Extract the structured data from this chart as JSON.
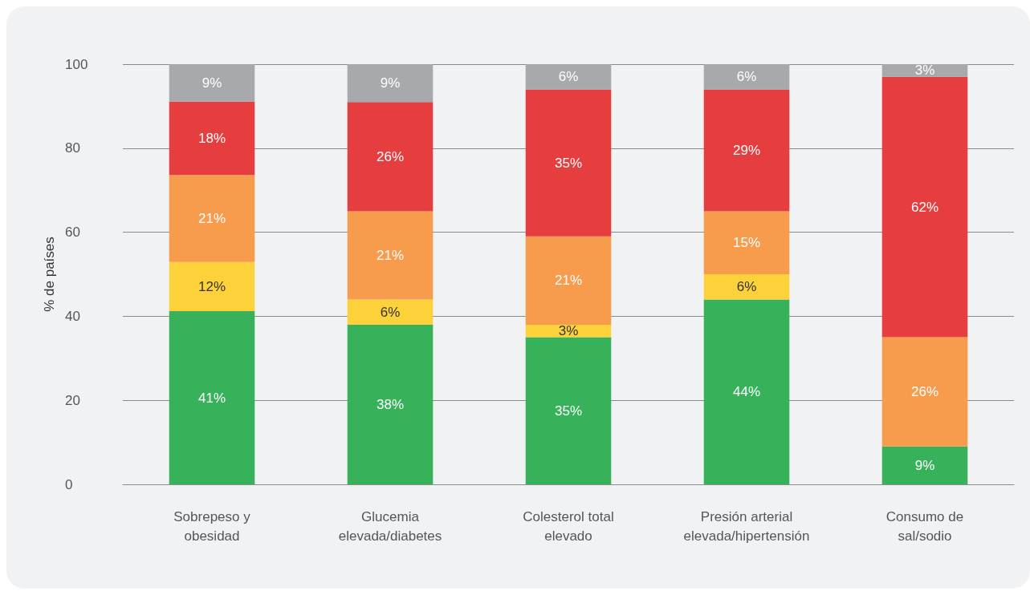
{
  "chart_data": {
    "type": "bar",
    "stacked": true,
    "ylabel": "% de países",
    "categories": [
      "Sobrepeso y\nobesidad",
      "Glucemia\nelevada/diabetes",
      "Colesterol total\nelevado",
      "Presión arterial\nelevada/hipertensión",
      "Consumo de\nsal/sodio"
    ],
    "series": [
      {
        "color": "#37b15a",
        "values": [
          41.2,
          38,
          35,
          44,
          9
        ],
        "value_labels": [
          "41%",
          "38%",
          "35%",
          "44%",
          "9%"
        ]
      },
      {
        "color": "#fdd13a",
        "values": [
          11.7,
          6,
          3,
          6,
          null
        ],
        "value_labels": [
          "12%",
          "6%",
          "3%",
          "6%",
          null
        ]
      },
      {
        "color": "#f79c4c",
        "values": [
          20.7,
          21,
          21,
          15,
          26
        ],
        "value_labels": [
          "21%",
          "21%",
          "21%",
          "15%",
          "26%"
        ]
      },
      {
        "color": "#e63d3f",
        "values": [
          17.5,
          26,
          35,
          29,
          62
        ],
        "value_labels": [
          "18%",
          "26%",
          "35%",
          "29%",
          "62%"
        ]
      },
      {
        "color": "#a7a9ac",
        "values": [
          8.9,
          9,
          6,
          6,
          3
        ],
        "value_labels": [
          "9%",
          "9%",
          "6%",
          "6%",
          "3%"
        ]
      }
    ],
    "ylim": [
      0,
      100
    ],
    "yticks": [
      0,
      20,
      40,
      60,
      80,
      100
    ],
    "grid": "y"
  }
}
